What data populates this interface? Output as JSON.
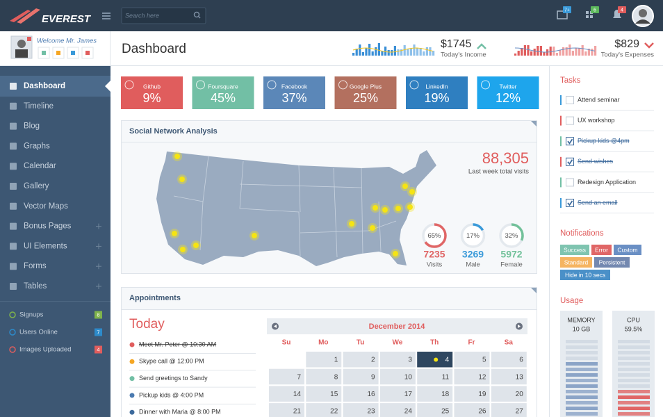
{
  "header": {
    "brand": "EVEREST",
    "search_placeholder": "Search here",
    "badges": [
      {
        "text": "7+",
        "color": "#3a9ad9"
      },
      {
        "text": "6",
        "color": "#5cb85c"
      },
      {
        "text": "4",
        "color": "#e05d5d"
      }
    ]
  },
  "profile": {
    "welcome": "Welcome Mr. James"
  },
  "page_title": "Dashboard",
  "income": {
    "amount": "$1745",
    "label": "Today's Income"
  },
  "expenses": {
    "amount": "$829",
    "label": "Today's Expenses"
  },
  "sidebar": {
    "menu": [
      {
        "label": "Dashboard",
        "active": true
      },
      {
        "label": "Timeline"
      },
      {
        "label": "Blog"
      },
      {
        "label": "Graphs"
      },
      {
        "label": "Calendar"
      },
      {
        "label": "Gallery"
      },
      {
        "label": "Vector Maps"
      },
      {
        "label": "Bonus Pages",
        "expandable": true
      },
      {
        "label": "UI Elements",
        "expandable": true
      },
      {
        "label": "Forms",
        "expandable": true
      },
      {
        "label": "Tables",
        "expandable": true
      }
    ],
    "stats": [
      {
        "label": "Signups",
        "count": 8,
        "color": "#7fb34b"
      },
      {
        "label": "Users Online",
        "count": 7,
        "color": "#2d8bcb"
      },
      {
        "label": "Images Uploaded",
        "count": 4,
        "color": "#e05d5d"
      }
    ]
  },
  "social_tiles": [
    {
      "name": "Github",
      "value": "9%",
      "color": "#e05d5d"
    },
    {
      "name": "Foursquare",
      "value": "45%",
      "color": "#72bfa5"
    },
    {
      "name": "Facebook",
      "value": "37%",
      "color": "#5b87b8"
    },
    {
      "name": "Google Plus",
      "value": "25%",
      "color": "#b3705f"
    },
    {
      "name": "LinkedIn",
      "value": "19%",
      "color": "#2f7fc0"
    },
    {
      "name": "Twitter",
      "value": "12%",
      "color": "#1ea5ec"
    }
  ],
  "analysis": {
    "title": "Social Network Analysis",
    "total": "88,305",
    "total_label": "Last week total visits",
    "donuts": [
      {
        "percent": 65,
        "percent_label": "65%",
        "count": 7235,
        "label": "Visits",
        "color": "#e06666"
      },
      {
        "percent": 17,
        "percent_label": "17%",
        "count": 3269,
        "label": "Male",
        "color": "#3a9ad9"
      },
      {
        "percent": 32,
        "percent_label": "32%",
        "count": 5972,
        "label": "Female",
        "color": "#72c19a"
      }
    ]
  },
  "appointments": {
    "title": "Appointments",
    "today": "Today",
    "items": [
      {
        "text": "Meet Mr. Peter @ 10:30 AM",
        "done": true,
        "color": "#e05d5d"
      },
      {
        "text": "Skype call @ 12:00 PM",
        "color": "#f5a623"
      },
      {
        "text": "Send greetings to Sandy",
        "color": "#72bfa5"
      },
      {
        "text": "Pickup kids @ 4:00 PM",
        "color": "#4a7ab0"
      },
      {
        "text": "Dinner with Maria @ 8:00 PM",
        "color": "#3d6a9c"
      }
    ],
    "calendar": {
      "month": "December 2014",
      "weekdays": [
        "Su",
        "Mo",
        "Tu",
        "We",
        "Th",
        "Fr",
        "Sa"
      ],
      "weeks": [
        [
          null,
          1,
          2,
          3,
          4,
          5,
          6
        ],
        [
          7,
          8,
          9,
          10,
          11,
          12,
          13
        ],
        [
          14,
          15,
          16,
          17,
          18,
          19,
          20
        ],
        [
          21,
          22,
          23,
          24,
          25,
          26,
          27
        ]
      ],
      "selected": 4
    }
  },
  "tasks": {
    "title": "Tasks",
    "items": [
      {
        "text": "Attend seminar",
        "color": "#3a9ad9"
      },
      {
        "text": "UX workshop",
        "color": "#e05d5d"
      },
      {
        "text": "Pickup kids @4pm",
        "done": true,
        "color": "#72bfa5"
      },
      {
        "text": "Send wishes",
        "done": true,
        "color": "#e05d5d"
      },
      {
        "text": "Redesign Application",
        "color": "#72bfa5"
      },
      {
        "text": "Send an email",
        "done": true,
        "color": "#3a9ad9"
      }
    ]
  },
  "notifications": {
    "title": "Notifications",
    "buttons": [
      {
        "label": "Success",
        "color": "#7fc4b0"
      },
      {
        "label": "Error",
        "color": "#e06666"
      },
      {
        "label": "Custom",
        "color": "#6a8fc4"
      },
      {
        "label": "Standard",
        "color": "#f5b461"
      },
      {
        "label": "Persistent",
        "color": "#7388b0"
      },
      {
        "label": "Hide in 10 secs",
        "color": "#4a90c8"
      }
    ]
  },
  "usage": {
    "title": "Usage",
    "meters": [
      {
        "name": "MEMORY",
        "value": "10 GB",
        "color": "#8ba4c7"
      },
      {
        "name": "CPU",
        "value": "59.5%",
        "color": "#e06666"
      }
    ]
  }
}
